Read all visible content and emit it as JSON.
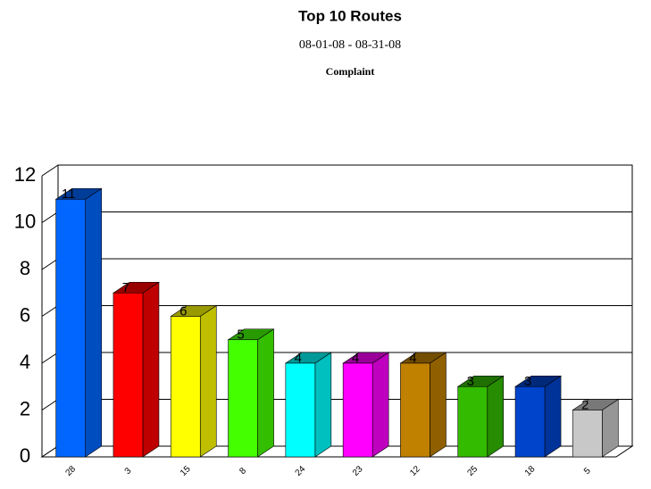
{
  "chart_data": {
    "type": "bar3d",
    "title": "Top 10 Routes",
    "subtitle": "08-01-08 - 08-31-08",
    "caption": "Complaint",
    "categories": [
      "28",
      "3",
      "15",
      "8",
      "24",
      "23",
      "12",
      "25",
      "18",
      "5"
    ],
    "values": [
      11,
      7,
      6,
      5,
      4,
      4,
      4,
      3,
      3,
      2
    ],
    "colors": [
      "#0066ff",
      "#ff0000",
      "#ffff00",
      "#44ff00",
      "#00ffff",
      "#ff00ff",
      "#c08000",
      "#33bb00",
      "#0044cc",
      "#c8c8c8"
    ],
    "ylim": [
      0,
      12
    ],
    "yticks": [
      0,
      2,
      4,
      6,
      8,
      10,
      12
    ],
    "grid": true
  }
}
